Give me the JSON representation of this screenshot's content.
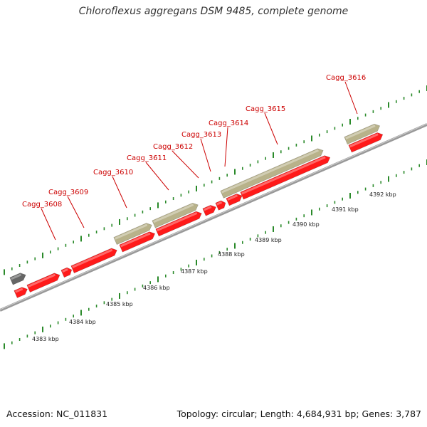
{
  "title": "Chloroflexus aggregans DSM 9485, complete genome",
  "footer": {
    "accession": "Accession: NC_011831",
    "summary": "Topology: circular; Length: 4,684,931 bp; Genes: 3,787"
  },
  "colors": {
    "cds": "#ff1a1a",
    "gene": "#b8b28a",
    "other": "#666666",
    "backbone": "#999999",
    "ticks": "#2a8a2a",
    "label": "#cc0000"
  },
  "scale": {
    "unit": "kbp",
    "ticks_kbp": [
      4383,
      4384,
      4385,
      4386,
      4387,
      4388,
      4389,
      4390,
      4391,
      4392
    ]
  },
  "gene_labels": [
    "Cagg_3608",
    "Cagg_3609",
    "Cagg_3610",
    "Cagg_3611",
    "Cagg_3612",
    "Cagg_3613",
    "Cagg_3614",
    "Cagg_3615",
    "Cagg_3616"
  ]
}
